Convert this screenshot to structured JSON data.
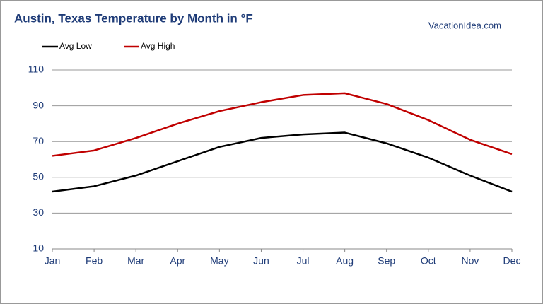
{
  "chart_data": {
    "type": "line",
    "title": "Austin, Texas Temperature by Month in °F",
    "source": "VacationIdea.com",
    "categories": [
      "Jan",
      "Feb",
      "Mar",
      "Apr",
      "May",
      "Jun",
      "Jul",
      "Aug",
      "Sep",
      "Oct",
      "Nov",
      "Dec"
    ],
    "series": [
      {
        "name": "Avg Low",
        "color": "#000000",
        "values": [
          42,
          45,
          51,
          59,
          67,
          72,
          74,
          75,
          69,
          61,
          51,
          42
        ]
      },
      {
        "name": "Avg High",
        "color": "#c00000",
        "values": [
          62,
          65,
          72,
          80,
          87,
          92,
          96,
          97,
          91,
          82,
          71,
          63
        ]
      }
    ],
    "ylim": [
      10,
      110
    ],
    "yticks": [
      10,
      30,
      50,
      70,
      90,
      110
    ],
    "grid": true,
    "legend": "top-left"
  }
}
